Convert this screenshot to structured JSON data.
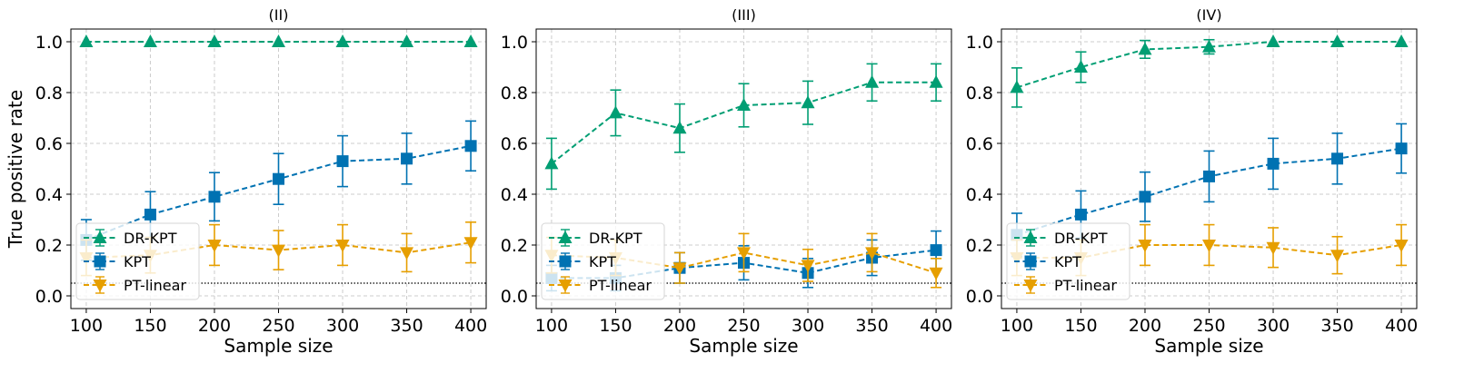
{
  "chart_data": [
    {
      "type": "line",
      "title": "(II)",
      "xlabel": "Sample size",
      "ylabel": "True positive rate",
      "x": [
        100,
        150,
        200,
        250,
        300,
        350,
        400
      ],
      "xlim": [
        88,
        412
      ],
      "ylim": [
        -0.05,
        1.05
      ],
      "xticks": [
        100,
        150,
        200,
        250,
        300,
        350,
        400
      ],
      "yticks": [
        0.0,
        0.2,
        0.4,
        0.6,
        0.8,
        1.0
      ],
      "grid": true,
      "reference_line": 0.05,
      "legend_position": "lower-left",
      "series": [
        {
          "name": "DR-KPT",
          "color": "#009E73",
          "marker": "triangle-up",
          "values": [
            1.0,
            1.0,
            1.0,
            1.0,
            1.0,
            1.0,
            1.0
          ],
          "errors": [
            0,
            0,
            0,
            0,
            0,
            0,
            0
          ]
        },
        {
          "name": "KPT",
          "color": "#0072B2",
          "marker": "square",
          "values": [
            0.22,
            0.32,
            0.39,
            0.46,
            0.53,
            0.54,
            0.59
          ],
          "errors": [
            0.08,
            0.09,
            0.095,
            0.1,
            0.1,
            0.1,
            0.098
          ]
        },
        {
          "name": "PT-linear",
          "color": "#E69F00",
          "marker": "triangle-down",
          "values": [
            0.15,
            0.16,
            0.2,
            0.18,
            0.2,
            0.17,
            0.21
          ],
          "errors": [
            0.07,
            0.07,
            0.08,
            0.077,
            0.08,
            0.075,
            0.08
          ]
        }
      ]
    },
    {
      "type": "line",
      "title": "(III)",
      "xlabel": "Sample size",
      "ylabel": "",
      "x": [
        100,
        150,
        200,
        250,
        300,
        350,
        400
      ],
      "xlim": [
        88,
        412
      ],
      "ylim": [
        -0.05,
        1.05
      ],
      "xticks": [
        100,
        150,
        200,
        250,
        300,
        350,
        400
      ],
      "yticks": [
        0.0,
        0.2,
        0.4,
        0.6,
        0.8,
        1.0
      ],
      "grid": true,
      "reference_line": 0.05,
      "legend_position": "lower-left",
      "series": [
        {
          "name": "DR-KPT",
          "color": "#009E73",
          "marker": "triangle-up",
          "values": [
            0.52,
            0.72,
            0.66,
            0.75,
            0.76,
            0.84,
            0.84
          ],
          "errors": [
            0.1,
            0.09,
            0.095,
            0.085,
            0.085,
            0.073,
            0.073
          ]
        },
        {
          "name": "KPT",
          "color": "#0072B2",
          "marker": "square",
          "values": [
            0.07,
            0.07,
            0.11,
            0.13,
            0.09,
            0.15,
            0.18
          ],
          "errors": [
            0.05,
            0.05,
            0.06,
            0.067,
            0.057,
            0.07,
            0.075
          ]
        },
        {
          "name": "PT-linear",
          "color": "#E69F00",
          "marker": "triangle-down",
          "values": [
            0.16,
            0.15,
            0.11,
            0.17,
            0.12,
            0.17,
            0.09
          ],
          "errors": [
            0.07,
            0.07,
            0.06,
            0.075,
            0.063,
            0.075,
            0.057
          ]
        }
      ]
    },
    {
      "type": "line",
      "title": "(IV)",
      "xlabel": "Sample size",
      "ylabel": "",
      "x": [
        100,
        150,
        200,
        250,
        300,
        350,
        400
      ],
      "xlim": [
        88,
        412
      ],
      "ylim": [
        -0.05,
        1.05
      ],
      "xticks": [
        100,
        150,
        200,
        250,
        300,
        350,
        400
      ],
      "yticks": [
        0.0,
        0.2,
        0.4,
        0.6,
        0.8,
        1.0
      ],
      "grid": true,
      "reference_line": 0.05,
      "legend_position": "lower-left",
      "series": [
        {
          "name": "DR-KPT",
          "color": "#009E73",
          "marker": "triangle-up",
          "values": [
            0.82,
            0.9,
            0.97,
            0.98,
            1.0,
            1.0,
            1.0
          ],
          "errors": [
            0.077,
            0.06,
            0.035,
            0.028,
            0,
            0,
            0
          ]
        },
        {
          "name": "KPT",
          "color": "#0072B2",
          "marker": "square",
          "values": [
            0.24,
            0.32,
            0.39,
            0.47,
            0.52,
            0.54,
            0.58
          ],
          "errors": [
            0.085,
            0.093,
            0.097,
            0.1,
            0.1,
            0.1,
            0.097
          ]
        },
        {
          "name": "PT-linear",
          "color": "#E69F00",
          "marker": "triangle-down",
          "values": [
            0.15,
            0.15,
            0.2,
            0.2,
            0.19,
            0.16,
            0.2
          ],
          "errors": [
            0.07,
            0.07,
            0.08,
            0.08,
            0.078,
            0.073,
            0.08
          ]
        }
      ]
    }
  ]
}
